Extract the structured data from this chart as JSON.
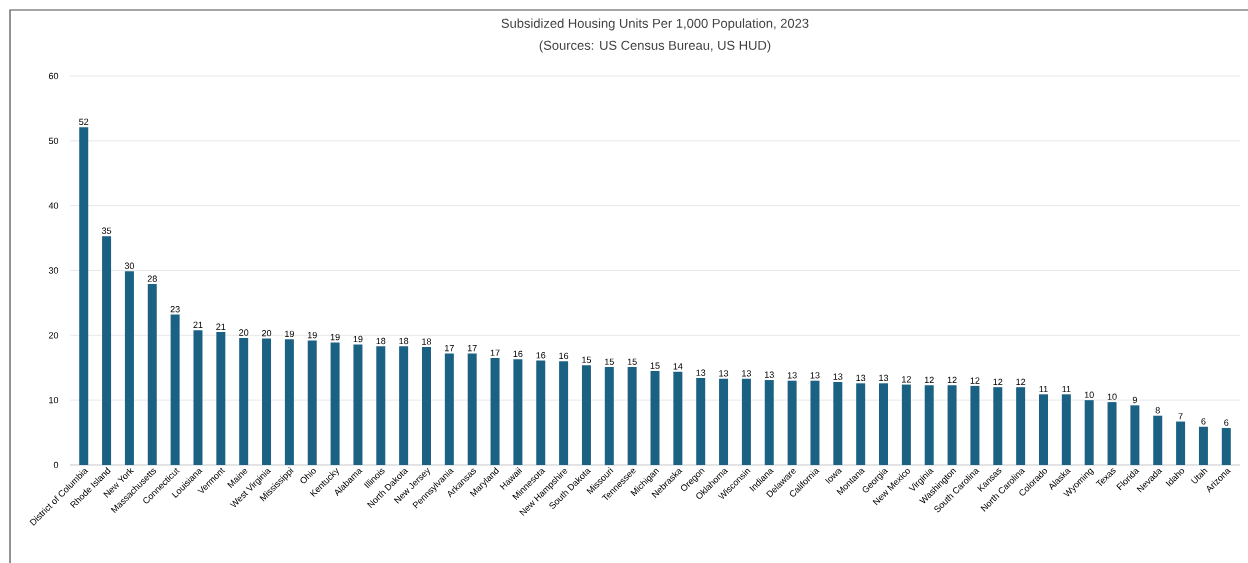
{
  "chart_data": {
    "type": "bar",
    "title": "Subsidized Housing Units Per 1,000 Population, 2023",
    "subtitle": "(Sources: US Census Bureau, US HUD)",
    "categories": [
      "District of Columbia",
      "Rhode Island",
      "New York",
      "Massachusetts",
      "Connecticut",
      "Louisiana",
      "Vermont",
      "Maine",
      "West Virginia",
      "Mississippi",
      "Ohio",
      "Kentucky",
      "Alabama",
      "Illinois",
      "North Dakota",
      "New Jersey",
      "Pennsylvania",
      "Arkansas",
      "Maryland",
      "Hawaii",
      "Minnesota",
      "New Hampshire",
      "South Dakota",
      "Missouri",
      "Tennessee",
      "Michigan",
      "Nebraska",
      "Oregon",
      "Oklahoma",
      "Wisconsin",
      "Indiana",
      "Delaware",
      "California",
      "Iowa",
      "Montana",
      "Georgia",
      "New Mexico",
      "Virginia",
      "Washington",
      "South Carolina",
      "Kansas",
      "North Carolina",
      "Colorado",
      "Alaska",
      "Wyoming",
      "Texas",
      "Florida",
      "Nevada",
      "Idaho",
      "Utah",
      "Arizona"
    ],
    "values": [
      52.1,
      35.3,
      29.9,
      27.9,
      23.2,
      20.8,
      20.5,
      19.6,
      19.5,
      19.4,
      19.2,
      18.9,
      18.6,
      18.3,
      18.3,
      18.2,
      17.2,
      17.2,
      16.5,
      16.3,
      16.1,
      16.0,
      15.4,
      15.1,
      15.1,
      14.5,
      14.4,
      13.4,
      13.3,
      13.3,
      13.1,
      13.0,
      13.0,
      12.8,
      12.6,
      12.6,
      12.4,
      12.3,
      12.3,
      12.2,
      12.0,
      12.0,
      10.9,
      10.9,
      10.0,
      9.7,
      9.2,
      7.6,
      6.7,
      5.9,
      5.7
    ],
    "value_labels": [
      "52",
      "35",
      "30",
      "28",
      "23",
      "21",
      "21",
      "20",
      "20",
      "19",
      "19",
      "19",
      "19",
      "18",
      "18",
      "18",
      "17",
      "17",
      "17",
      "16",
      "16",
      "16",
      "15",
      "15",
      "15",
      "15",
      "14",
      "13",
      "13",
      "13",
      "13",
      "13",
      "13",
      "13",
      "13",
      "13",
      "12",
      "12",
      "12",
      "12",
      "12",
      "12",
      "11",
      "11",
      "10",
      "10",
      "9",
      "8",
      "7",
      "6",
      "6"
    ],
    "color": "#1b6184",
    "ylim": [
      0,
      60
    ],
    "yticks": [
      0,
      10,
      20,
      30,
      40,
      50,
      60
    ],
    "grid": "y"
  }
}
